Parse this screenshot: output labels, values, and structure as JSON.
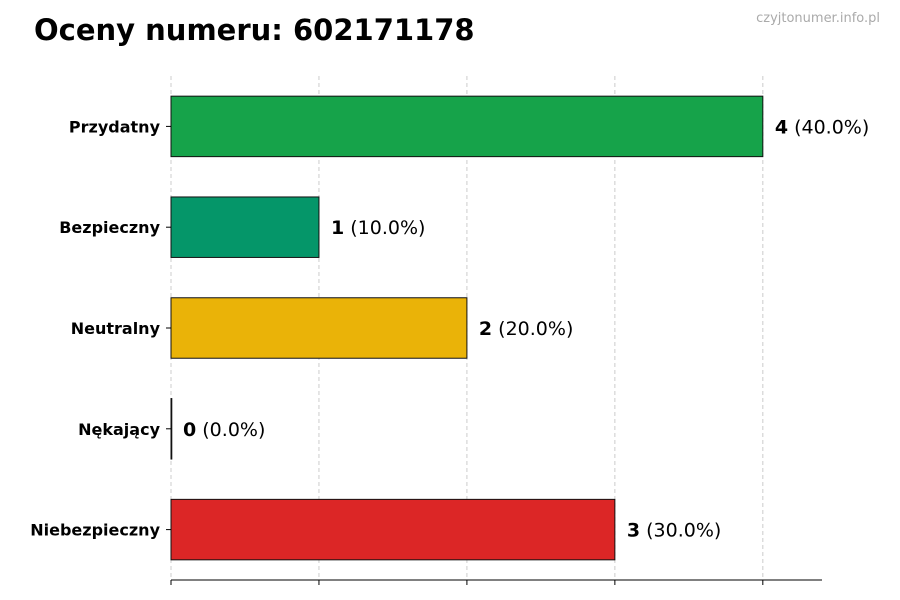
{
  "title": "Oceny numeru: 602171178",
  "watermark": "czyjtonumer.info.pl",
  "chart_data": {
    "type": "bar",
    "orientation": "horizontal",
    "categories": [
      "Przydatny",
      "Bezpieczny",
      "Neutralny",
      "Nękający",
      "Niebezpieczny"
    ],
    "values": [
      4,
      1,
      2,
      0,
      3
    ],
    "value_labels": [
      "4",
      "1",
      "2",
      "0",
      "3"
    ],
    "percent_labels": [
      "(40.0%)",
      "(10.0%)",
      "(20.0%)",
      "(0.0%)",
      "(30.0%)"
    ],
    "colors": [
      "#16a34a",
      "#059669",
      "#eab308",
      "#f97316",
      "#dc2626"
    ],
    "xlim": [
      0,
      4.4
    ],
    "xticks": [
      0,
      1,
      2,
      3,
      4
    ],
    "grid": true,
    "title": "Oceny numeru: 602171178"
  }
}
